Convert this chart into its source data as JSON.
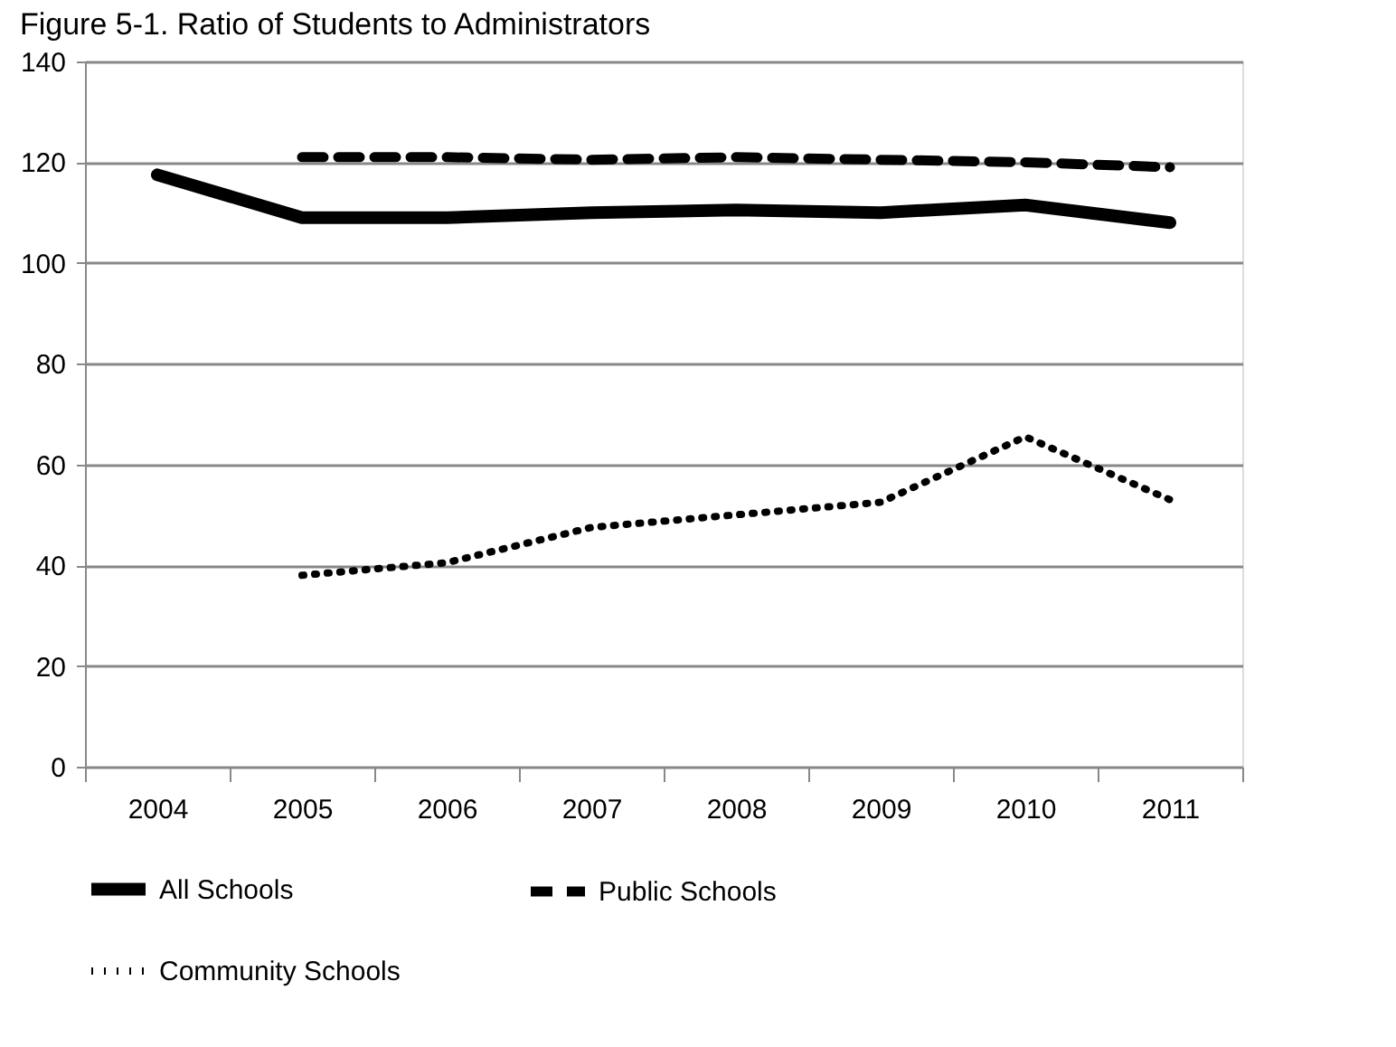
{
  "chart_data": {
    "type": "line",
    "title": "Figure 5-1. Ratio of Students to Administrators",
    "categories": [
      "2004",
      "2005",
      "2006",
      "2007",
      "2008",
      "2009",
      "2010",
      "2011"
    ],
    "series": [
      {
        "name": "All Schools",
        "color": "#000000",
        "line_style": "solid",
        "values": [
          117.5,
          109,
          109,
          110,
          110.5,
          110,
          111.5,
          108
        ]
      },
      {
        "name": "Public Schools",
        "color": "#000000",
        "line_style": "dashed",
        "values": [
          null,
          121,
          121,
          120.5,
          121,
          120.5,
          120,
          119
        ]
      },
      {
        "name": "Community Schools",
        "color": "#000000",
        "line_style": "dotted",
        "values": [
          null,
          38,
          40.5,
          47.5,
          50,
          52.5,
          65.5,
          53
        ]
      }
    ],
    "ylim": [
      0,
      140
    ],
    "yticks": [
      0,
      20,
      40,
      60,
      80,
      100,
      120,
      140
    ],
    "grid": "y",
    "legend": "bottom",
    "marker": "none"
  }
}
